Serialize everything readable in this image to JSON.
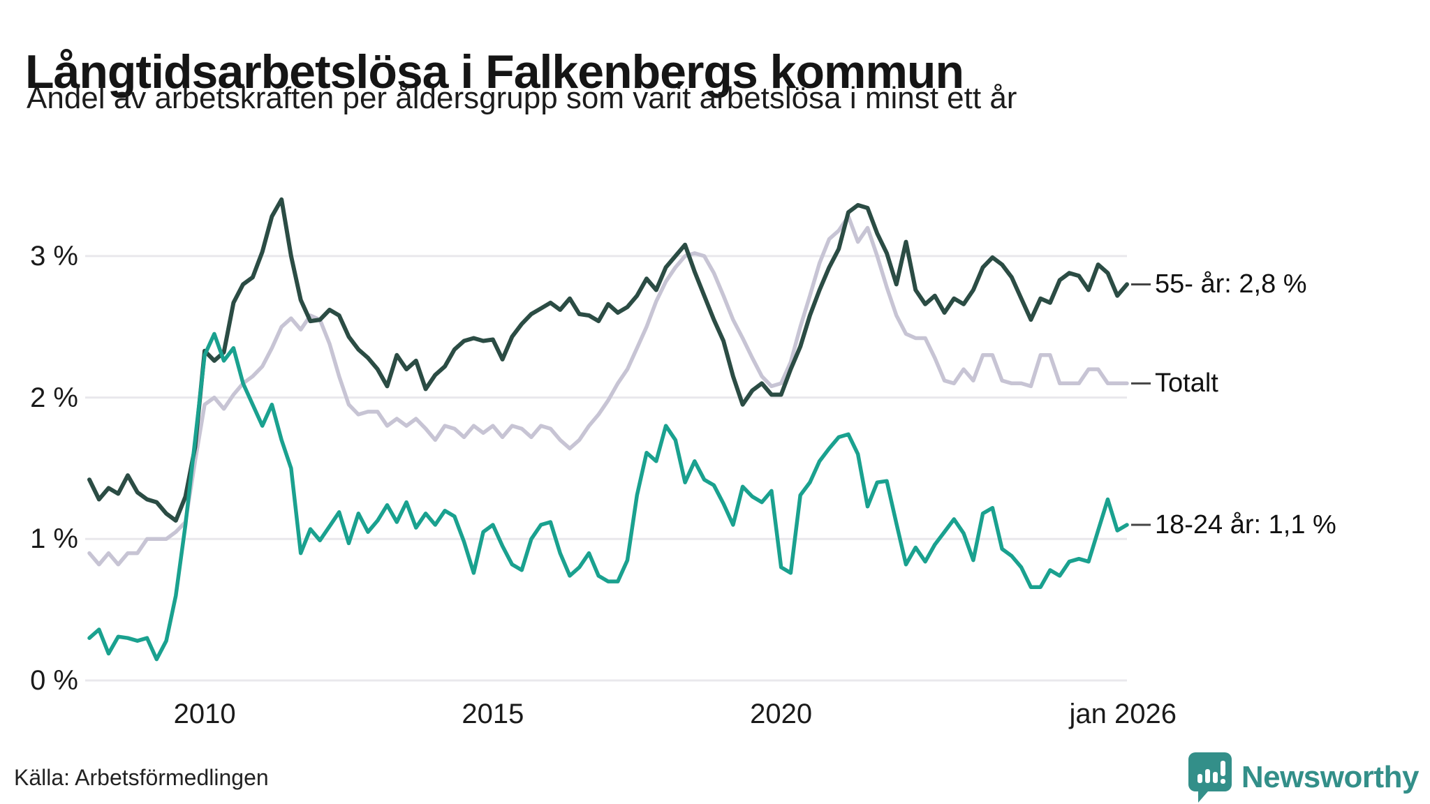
{
  "header": {
    "title": "Långtidsarbetslösa i Falkenbergs kommun",
    "subtitle": "Andel av arbetskraften per åldersgrupp som varit arbetslösa i minst ett år"
  },
  "footer": {
    "source": "Källa: Arbetsförmedlingen",
    "brand": "Newsworthy"
  },
  "colors": {
    "series_55": "#2b4c44",
    "series_total": "#c7c4d4",
    "series_18_24": "#1aa18f",
    "gridline": "#e9e8ec",
    "label_dash": "#444444",
    "brand_teal": "#338f89",
    "text": "#111111"
  },
  "chart_data": {
    "type": "line",
    "title": "Långtidsarbetslösa i Falkenbergs kommun",
    "subtitle": "Andel av arbetskraften per åldersgrupp som varit arbetslösa i minst ett år",
    "unit": "%",
    "x_start": 2008.0,
    "x_end": 2026.0,
    "x_step_years": 0.1666667,
    "ylim": [
      0,
      3.55
    ],
    "grid": true,
    "legend_position": "right-end-labels",
    "y_ticks": [
      {
        "label": "0 %",
        "value": 0
      },
      {
        "label": "1 %",
        "value": 1
      },
      {
        "label": "2 %",
        "value": 2
      },
      {
        "label": "3 %",
        "value": 3
      }
    ],
    "x_ticks": [
      {
        "label": "2010",
        "year": 2010
      },
      {
        "label": "2015",
        "year": 2015
      },
      {
        "label": "2020",
        "year": 2020
      },
      {
        "label": "jan 2026",
        "year": 2025.93
      }
    ],
    "series": [
      {
        "name": "Totalt",
        "end_label": "Totalt",
        "end_value": 2.1,
        "color_key": "series_total",
        "stroke_width": 5.5,
        "values": [
          0.9,
          0.82,
          0.9,
          0.82,
          0.9,
          0.9,
          1.0,
          1.0,
          1.0,
          1.05,
          1.12,
          1.55,
          1.95,
          2.0,
          1.92,
          2.02,
          2.1,
          2.15,
          2.22,
          2.35,
          2.5,
          2.56,
          2.48,
          2.58,
          2.55,
          2.38,
          2.15,
          1.95,
          1.88,
          1.9,
          1.9,
          1.8,
          1.85,
          1.8,
          1.85,
          1.78,
          1.7,
          1.8,
          1.78,
          1.72,
          1.8,
          1.75,
          1.8,
          1.72,
          1.8,
          1.78,
          1.72,
          1.8,
          1.78,
          1.7,
          1.64,
          1.7,
          1.8,
          1.88,
          1.98,
          2.1,
          2.2,
          2.35,
          2.5,
          2.68,
          2.82,
          2.92,
          3.0,
          3.02,
          3.0,
          2.88,
          2.72,
          2.55,
          2.42,
          2.28,
          2.15,
          2.08,
          2.1,
          2.25,
          2.5,
          2.72,
          2.95,
          3.12,
          3.18,
          3.28,
          3.1,
          3.2,
          3.0,
          2.78,
          2.58,
          2.45,
          2.42,
          2.42,
          2.28,
          2.12,
          2.1,
          2.2,
          2.12,
          2.3,
          2.3,
          2.12,
          2.1,
          2.1,
          2.08,
          2.3,
          2.3,
          2.1,
          2.1,
          2.1,
          2.2,
          2.2,
          2.1,
          2.1,
          2.1
        ]
      },
      {
        "name": "55- år",
        "end_label": "55- år: 2,8 %",
        "end_value": 2.8,
        "color_key": "series_55",
        "stroke_width": 6,
        "values": [
          1.42,
          1.28,
          1.36,
          1.32,
          1.45,
          1.33,
          1.28,
          1.26,
          1.18,
          1.13,
          1.3,
          1.65,
          2.33,
          2.26,
          2.32,
          2.67,
          2.8,
          2.85,
          3.03,
          3.28,
          3.4,
          3.0,
          2.69,
          2.54,
          2.55,
          2.62,
          2.58,
          2.43,
          2.34,
          2.28,
          2.2,
          2.08,
          2.3,
          2.2,
          2.26,
          2.06,
          2.16,
          2.22,
          2.34,
          2.4,
          2.42,
          2.4,
          2.41,
          2.27,
          2.43,
          2.52,
          2.59,
          2.63,
          2.67,
          2.62,
          2.7,
          2.59,
          2.58,
          2.54,
          2.66,
          2.6,
          2.64,
          2.72,
          2.84,
          2.76,
          2.92,
          3.0,
          3.08,
          2.89,
          2.72,
          2.55,
          2.4,
          2.15,
          1.95,
          2.05,
          2.1,
          2.02,
          2.02,
          2.2,
          2.36,
          2.58,
          2.76,
          2.92,
          3.05,
          3.31,
          3.36,
          3.34,
          3.16,
          3.02,
          2.8,
          3.1,
          2.76,
          2.66,
          2.72,
          2.6,
          2.7,
          2.66,
          2.76,
          2.92,
          2.99,
          2.94,
          2.85,
          2.7,
          2.55,
          2.7,
          2.67,
          2.83,
          2.88,
          2.86,
          2.76,
          2.94,
          2.88,
          2.72,
          2.8
        ]
      },
      {
        "name": "18-24 år",
        "end_label": "18-24 år: 1,1 %",
        "end_value": 1.1,
        "color_key": "series_18_24",
        "stroke_width": 5.5,
        "values": [
          0.3,
          0.36,
          0.19,
          0.31,
          0.3,
          0.28,
          0.3,
          0.15,
          0.28,
          0.6,
          1.1,
          1.7,
          2.3,
          2.45,
          2.26,
          2.35,
          2.1,
          1.95,
          1.8,
          1.95,
          1.7,
          1.5,
          0.9,
          1.07,
          0.99,
          1.09,
          1.19,
          0.97,
          1.18,
          1.05,
          1.13,
          1.24,
          1.12,
          1.26,
          1.08,
          1.18,
          1.1,
          1.2,
          1.16,
          0.98,
          0.76,
          1.05,
          1.1,
          0.95,
          0.82,
          0.78,
          1.0,
          1.1,
          1.12,
          0.9,
          0.74,
          0.8,
          0.9,
          0.74,
          0.7,
          0.7,
          0.85,
          1.31,
          1.61,
          1.55,
          1.8,
          1.7,
          1.4,
          1.55,
          1.42,
          1.38,
          1.25,
          1.1,
          1.37,
          1.3,
          1.26,
          1.34,
          0.8,
          0.76,
          1.31,
          1.4,
          1.55,
          1.64,
          1.72,
          1.74,
          1.6,
          1.23,
          1.4,
          1.41,
          1.11,
          0.82,
          0.94,
          0.84,
          0.96,
          1.05,
          1.14,
          1.04,
          0.85,
          1.18,
          1.22,
          0.93,
          0.88,
          0.8,
          0.66,
          0.66,
          0.78,
          0.74,
          0.84,
          0.86,
          0.84,
          1.06,
          1.28,
          1.06,
          1.1
        ]
      }
    ]
  }
}
